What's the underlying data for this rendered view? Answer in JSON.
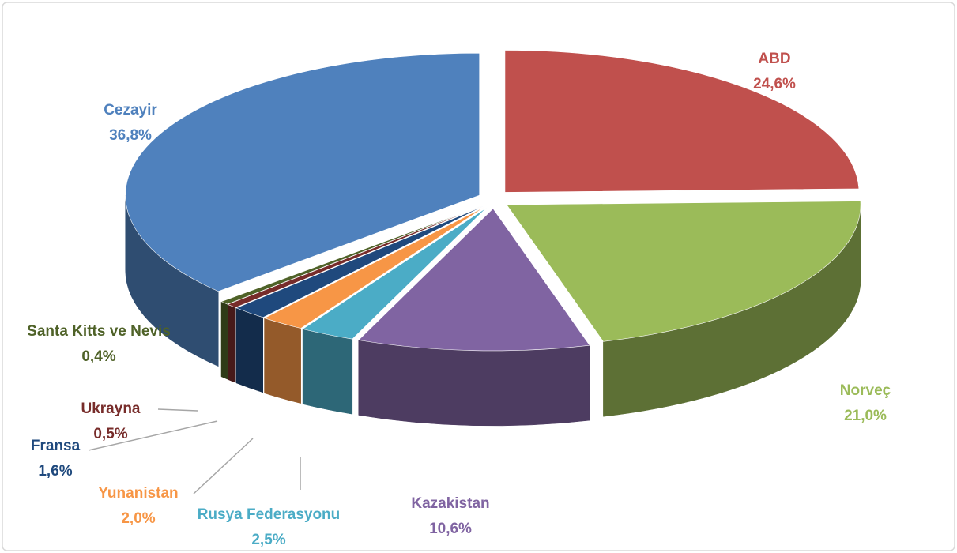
{
  "chart_data": {
    "type": "pie",
    "categories": [
      "ABD",
      "Norveç",
      "Kazakistan",
      "Rusya Federasyonu",
      "Yunanistan",
      "Fransa",
      "Ukrayna",
      "Santa Kitts ve Nevis",
      "Cezayir"
    ],
    "values": [
      24.6,
      21.0,
      10.6,
      2.5,
      2.0,
      1.6,
      0.5,
      0.4,
      36.8
    ],
    "value_labels": [
      "24,6%",
      "21,0%",
      "10,6%",
      "2,5%",
      "2,0%",
      "1,6%",
      "0,5%",
      "0,4%",
      "36,8%"
    ],
    "colors": [
      "#c0504d",
      "#9bbb59",
      "#8064a2",
      "#4bacc6",
      "#f79646",
      "#1f497d",
      "#772c2a",
      "#4f6228",
      "#4f81bd"
    ]
  }
}
